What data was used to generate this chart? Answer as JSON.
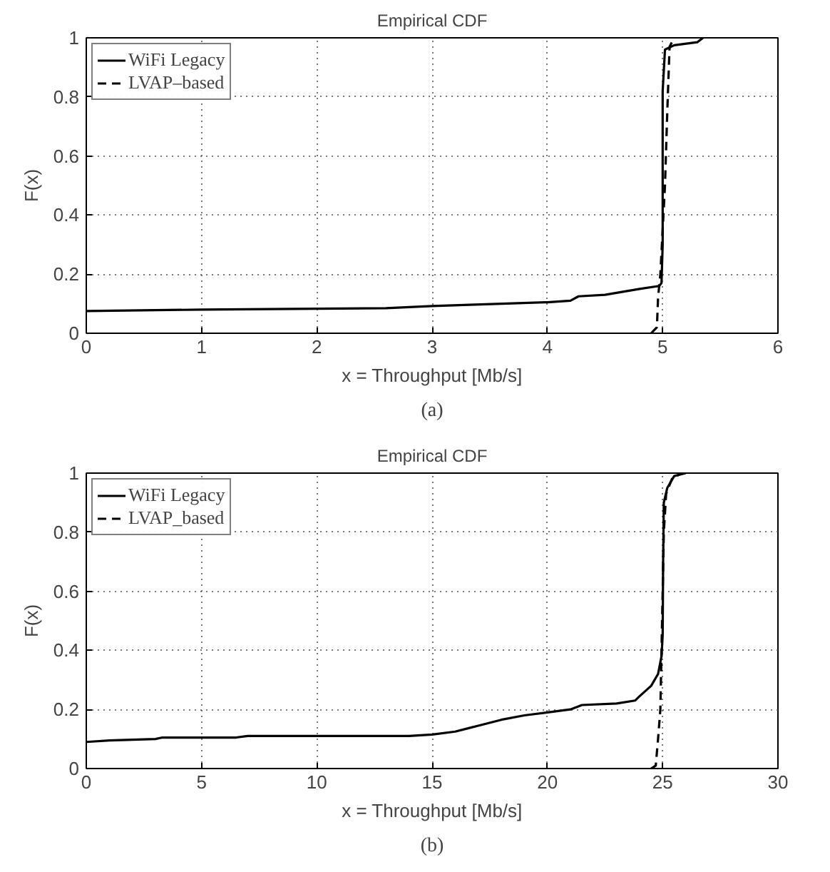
{
  "chart_data": [
    {
      "type": "line",
      "title": "Empirical CDF",
      "xlabel": "x = Throughput [Mb/s]",
      "ylabel": "F(x)",
      "xlim": [
        0,
        6
      ],
      "ylim": [
        0,
        1
      ],
      "xticks": [
        0,
        1,
        2,
        3,
        4,
        5,
        6
      ],
      "yticks": [
        0,
        0.2,
        0.4,
        0.6,
        0.8,
        1
      ],
      "grid": true,
      "legend": "top left",
      "annotations": [
        "(a)"
      ],
      "series": [
        {
          "name": "WiFi Legacy",
          "color": "#000000",
          "line_style": "solid",
          "x": [
            0,
            1,
            2,
            2.6,
            3,
            4,
            4.2,
            4.27,
            4.5,
            4.8,
            4.97,
            4.99,
            5.0,
            5.0,
            5.02,
            5.1,
            5.3,
            5.35
          ],
          "values": [
            0.075,
            0.08,
            0.083,
            0.085,
            0.092,
            0.105,
            0.11,
            0.125,
            0.13,
            0.15,
            0.16,
            0.17,
            0.3,
            0.82,
            0.96,
            0.975,
            0.985,
            1.0
          ]
        },
        {
          "name": "LVAP–based",
          "color": "#000000",
          "line_style": "dashed",
          "x": [
            4.9,
            4.95,
            4.96,
            4.98,
            5.02,
            5.04,
            5.06,
            5.1
          ],
          "values": [
            0,
            0.02,
            0.12,
            0.2,
            0.5,
            0.75,
            0.97,
            1.0
          ]
        }
      ]
    },
    {
      "type": "line",
      "title": "Empirical CDF",
      "xlabel": "x = Throughput [Mb/s]",
      "ylabel": "F(x)",
      "xlim": [
        0,
        30
      ],
      "ylim": [
        0,
        1
      ],
      "xticks": [
        0,
        5,
        10,
        15,
        20,
        25,
        30
      ],
      "yticks": [
        0,
        0.2,
        0.4,
        0.6,
        0.8,
        1
      ],
      "grid": true,
      "legend": "top left",
      "annotations": [
        "(b)"
      ],
      "series": [
        {
          "name": "WiFi Legacy",
          "color": "#000000",
          "line_style": "solid",
          "x": [
            0,
            1,
            3,
            3.3,
            6.5,
            7,
            14,
            15,
            16,
            16.5,
            17,
            18,
            19,
            20,
            21,
            21.5,
            23,
            23.8,
            24,
            24.5,
            24.8,
            24.95,
            25.0,
            25.02,
            25.05,
            25.2,
            25.5,
            26
          ],
          "values": [
            0.09,
            0.095,
            0.1,
            0.105,
            0.105,
            0.11,
            0.11,
            0.115,
            0.125,
            0.135,
            0.145,
            0.165,
            0.18,
            0.19,
            0.2,
            0.215,
            0.22,
            0.23,
            0.245,
            0.28,
            0.32,
            0.38,
            0.45,
            0.7,
            0.9,
            0.95,
            0.99,
            1.0
          ]
        },
        {
          "name": "LVAP_based",
          "color": "#000000",
          "line_style": "dashed",
          "x": [
            24.5,
            24.7,
            24.8,
            24.9,
            24.95,
            25.0,
            25.05,
            25.15,
            25.4,
            25.8
          ],
          "values": [
            0,
            0.01,
            0.1,
            0.2,
            0.4,
            0.6,
            0.8,
            0.93,
            0.98,
            1.0
          ]
        }
      ]
    }
  ]
}
